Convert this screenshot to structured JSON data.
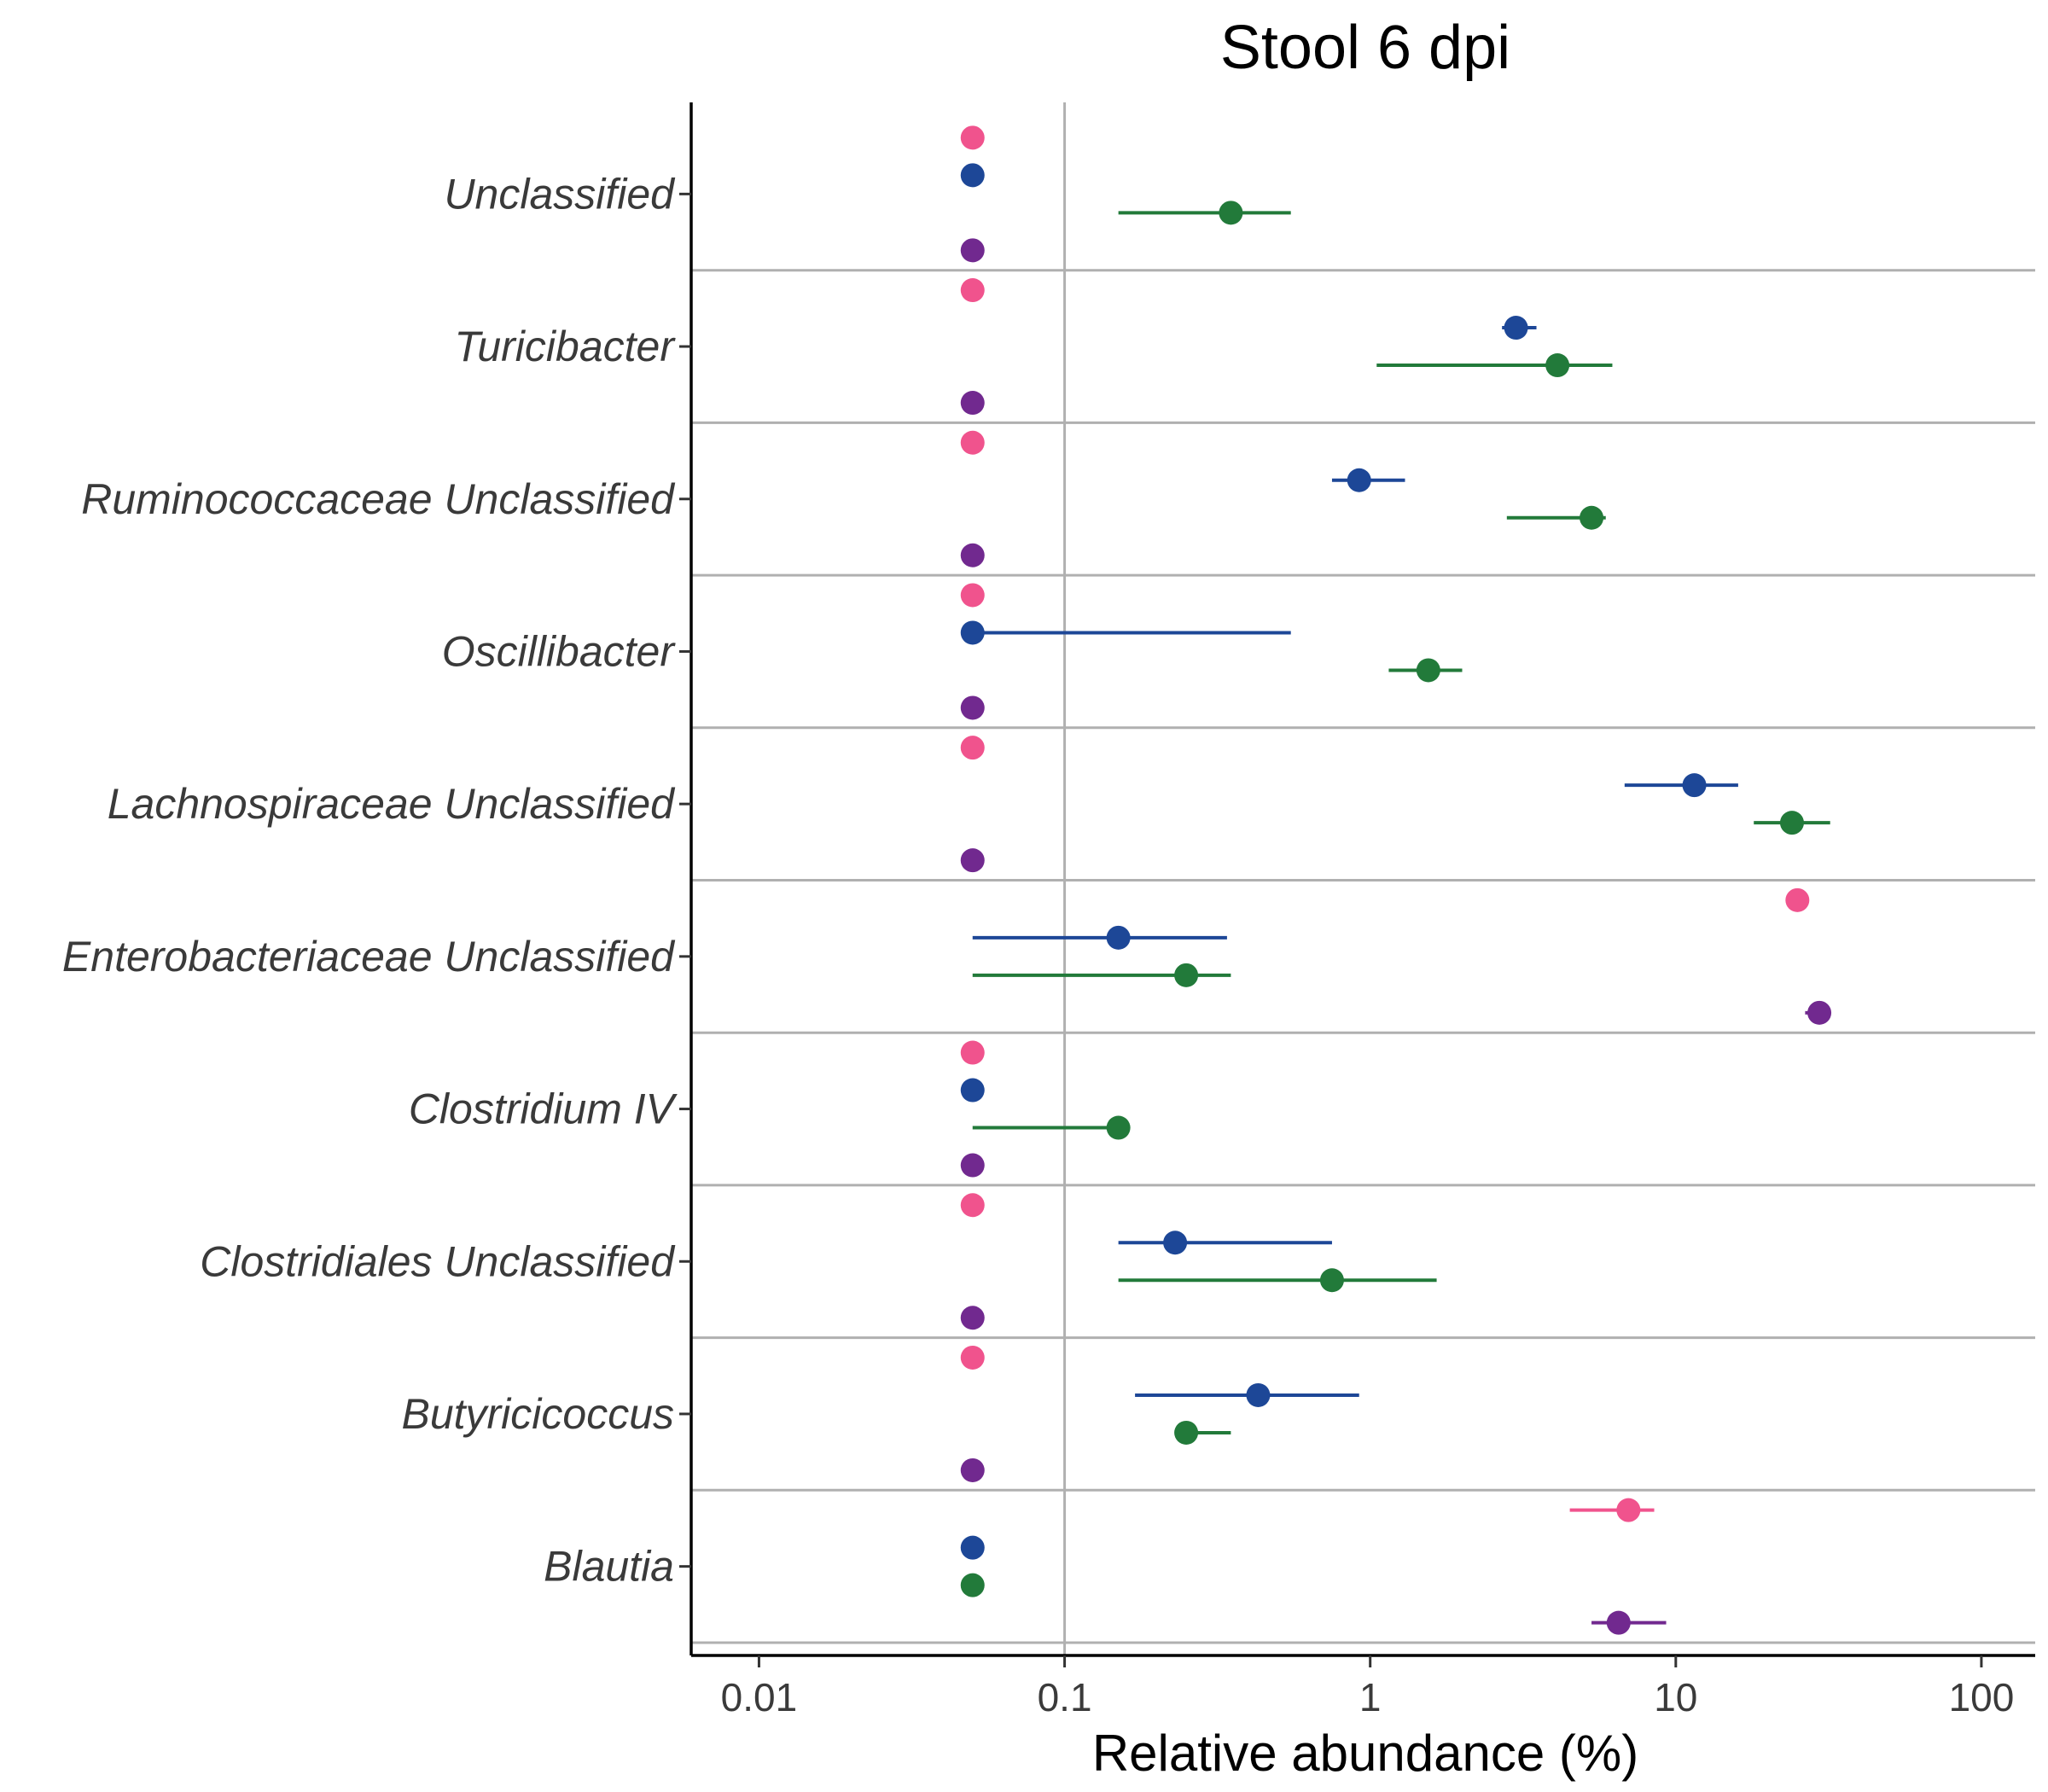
{
  "chart_data": {
    "type": "scatter",
    "title": "Stool 6 dpi",
    "xlabel": "Relative abundance (%)",
    "ylabel": "",
    "x_scale": "log",
    "xlim": [
      0.006,
      150
    ],
    "x_ticks": [
      {
        "value": 0.01,
        "label": "0.01"
      },
      {
        "value": 0.1,
        "label": "0.1"
      },
      {
        "value": 1,
        "label": "1"
      },
      {
        "value": 10,
        "label": "10"
      },
      {
        "value": 100,
        "label": "100"
      }
    ],
    "reference_line_x": 0.1,
    "grid": "horizontal separators between categories",
    "legend": "none",
    "categories": [
      "Unclassified",
      "Turicibacter",
      "Ruminococcaceae Unclassified",
      "Oscillibacter",
      "Lachnospiraceae Unclassified",
      "Enterobacteriaceae Unclassified",
      "Clostridium IV",
      "Clostridiales Unclassified",
      "Butyricicoccus",
      "Blautia"
    ],
    "series": [
      {
        "color": "#f0538d",
        "points": [
          {
            "x": 0.05
          },
          {
            "x": 0.05
          },
          {
            "x": 0.05
          },
          {
            "x": 0.05
          },
          {
            "x": 0.05
          },
          {
            "x": 25,
            "low": 24,
            "high": 26
          },
          {
            "x": 0.05
          },
          {
            "x": 0.05
          },
          {
            "x": 0.05
          },
          {
            "x": 7,
            "low": 4.5,
            "high": 8.5
          }
        ]
      },
      {
        "color": "#1d4797",
        "points": [
          {
            "x": 0.05
          },
          {
            "x": 3,
            "low": 2.7,
            "high": 3.5
          },
          {
            "x": 0.92,
            "low": 0.75,
            "high": 1.3
          },
          {
            "x": 0.05,
            "low": 0.05,
            "high": 0.55
          },
          {
            "x": 11.5,
            "low": 6.8,
            "high": 16
          },
          {
            "x": 0.15,
            "low": 0.05,
            "high": 0.34
          },
          {
            "x": 0.05
          },
          {
            "x": 0.23,
            "low": 0.15,
            "high": 0.75
          },
          {
            "x": 0.43,
            "low": 0.17,
            "high": 0.92
          },
          {
            "x": 0.05
          }
        ]
      },
      {
        "color": "#227a3a",
        "points": [
          {
            "x": 0.35,
            "low": 0.15,
            "high": 0.55
          },
          {
            "x": 4.1,
            "low": 1.05,
            "high": 6.2
          },
          {
            "x": 5.3,
            "low": 2.8,
            "high": 5.9
          },
          {
            "x": 1.55,
            "low": 1.15,
            "high": 2
          },
          {
            "x": 24,
            "low": 18,
            "high": 32
          },
          {
            "x": 0.25,
            "low": 0.05,
            "high": 0.35
          },
          {
            "x": 0.15,
            "low": 0.05,
            "high": 0.15
          },
          {
            "x": 0.75,
            "low": 0.15,
            "high": 1.65
          },
          {
            "x": 0.25,
            "low": 0.25,
            "high": 0.35
          },
          {
            "x": 0.05
          }
        ]
      },
      {
        "color": "#71298f",
        "points": [
          {
            "x": 0.05
          },
          {
            "x": 0.05
          },
          {
            "x": 0.05
          },
          {
            "x": 0.05
          },
          {
            "x": 0.05
          },
          {
            "x": 29.5,
            "low": 26.5,
            "high": 30.5
          },
          {
            "x": 0.05
          },
          {
            "x": 0.05
          },
          {
            "x": 0.05
          },
          {
            "x": 6.5,
            "low": 5.3,
            "high": 9.3
          }
        ]
      }
    ]
  }
}
